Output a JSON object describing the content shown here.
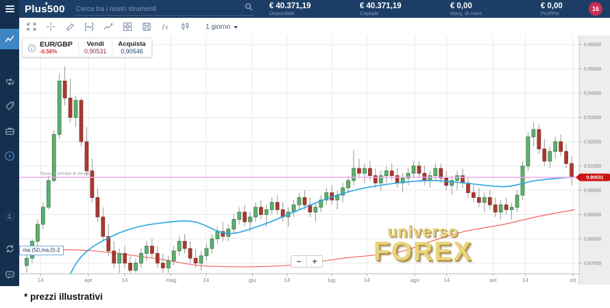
{
  "topbar": {
    "logo": "Plus500",
    "logo_plus": "+",
    "search_placeholder": "Cerca tra i nostri strumenti",
    "metrics": [
      {
        "value": "€ 40.371,19",
        "label": "Disponibile"
      },
      {
        "value": "€ 40.371,19",
        "label": "Capitale"
      },
      {
        "value": "€ 0,00",
        "label": "Marg. di mant."
      },
      {
        "value": "€ 0,00",
        "label": "Prof/Per"
      }
    ],
    "badge_count": "16"
  },
  "sidebar": {
    "icons": [
      "trade-chart",
      "positions",
      "instruments-tag",
      "portfolio",
      "boost",
      "sentiment",
      "refresh",
      "support-chat"
    ],
    "selected": "trade-chart"
  },
  "toolbar": {
    "icons": [
      "fit-screen",
      "crosshair",
      "draw",
      "indicators",
      "chart-type-line",
      "layouts",
      "save",
      "functions",
      "candlestick"
    ],
    "timeframe": "1 giorno"
  },
  "instrument": {
    "name": "EUR/GBP",
    "change": "-0.56%",
    "sell_label": "Vendi",
    "sell_value": "0,90531",
    "buy_label": "Acquista",
    "buy_value": "0,90546"
  },
  "zoom_controls": {
    "out": "−",
    "in": "+"
  },
  "watermark": {
    "line1": "universo",
    "line2": "FOREX"
  },
  "footer_note": "* prezzi illustrativi",
  "chart_data": {
    "type": "candlestick",
    "title": "EUR/GBP 1 giorno",
    "ylim": [
      0.8656,
      0.9637
    ],
    "y_ticks": [
      0.96,
      0.95,
      0.94,
      0.93,
      0.92,
      0.91,
      0.9,
      0.89,
      0.88,
      0.87
    ],
    "y_tick_labels": [
      "0.96000",
      "0.95000",
      "0.94000",
      "0.93000",
      "0.92000",
      "0.91000",
      "0.90000",
      "0.89000",
      "0.88000",
      "0.87000"
    ],
    "x_labels": [
      {
        "label": "14",
        "t": 0.03
      },
      {
        "label": "apr",
        "t": 0.117
      },
      {
        "label": "14",
        "t": 0.183
      },
      {
        "label": "mag",
        "t": 0.267
      },
      {
        "label": "14",
        "t": 0.331
      },
      {
        "label": "giu",
        "t": 0.415
      },
      {
        "label": "14",
        "t": 0.478
      },
      {
        "label": "lug",
        "t": 0.559
      },
      {
        "label": "14",
        "t": 0.623
      },
      {
        "label": "ago",
        "t": 0.71
      },
      {
        "label": "14",
        "t": 0.768
      },
      {
        "label": "set",
        "t": 0.852
      },
      {
        "label": "14",
        "t": 0.911
      },
      {
        "label": "ott",
        "t": 0.9975
      }
    ],
    "sell_line": 0.90531,
    "sell_line_label": "Tasso di entrata di vendita",
    "price_tag": "0.90531",
    "ma_legend": "ma (50,ma,0)-2",
    "colors": {
      "up_fill": "#63ad74",
      "up_stroke": "#2f7d3f",
      "down_fill": "#a63a31",
      "down_stroke": "#8c2f27",
      "wick": "#8a8a8a",
      "ma_fast": "#2fa9e0",
      "ma_slow": "#f0615c",
      "level": "#eda9ea",
      "tag_bg": "#cc1414",
      "grid": "#e9e9e9",
      "axis_bg": "#ededed",
      "axis_text": "#7d7d7d"
    },
    "candles": [
      [
        0.869,
        0.874,
        0.866,
        0.872
      ],
      [
        0.872,
        0.88,
        0.87,
        0.879
      ],
      [
        0.879,
        0.888,
        0.877,
        0.886
      ],
      [
        0.886,
        0.895,
        0.884,
        0.893
      ],
      [
        0.893,
        0.906,
        0.892,
        0.904
      ],
      [
        0.904,
        0.925,
        0.903,
        0.923
      ],
      [
        0.923,
        0.948,
        0.921,
        0.945
      ],
      [
        0.945,
        0.951,
        0.935,
        0.938
      ],
      [
        0.938,
        0.946,
        0.928,
        0.93
      ],
      [
        0.93,
        0.939,
        0.926,
        0.937
      ],
      [
        0.937,
        0.938,
        0.918,
        0.92
      ],
      [
        0.92,
        0.926,
        0.906,
        0.908
      ],
      [
        0.908,
        0.913,
        0.895,
        0.897
      ],
      [
        0.897,
        0.901,
        0.887,
        0.889
      ],
      [
        0.889,
        0.893,
        0.879,
        0.881
      ],
      [
        0.881,
        0.886,
        0.873,
        0.875
      ],
      [
        0.875,
        0.879,
        0.868,
        0.87
      ],
      [
        0.87,
        0.876,
        0.866,
        0.874
      ],
      [
        0.874,
        0.877,
        0.868,
        0.87
      ],
      [
        0.87,
        0.873,
        0.866,
        0.867
      ],
      [
        0.867,
        0.872,
        0.866,
        0.87
      ],
      [
        0.87,
        0.876,
        0.868,
        0.874
      ],
      [
        0.874,
        0.879,
        0.871,
        0.877
      ],
      [
        0.877,
        0.88,
        0.872,
        0.874
      ],
      [
        0.874,
        0.877,
        0.868,
        0.87
      ],
      [
        0.87,
        0.874,
        0.866,
        0.868
      ],
      [
        0.868,
        0.873,
        0.866,
        0.871
      ],
      [
        0.871,
        0.877,
        0.869,
        0.875
      ],
      [
        0.875,
        0.881,
        0.873,
        0.879
      ],
      [
        0.879,
        0.882,
        0.874,
        0.876
      ],
      [
        0.876,
        0.879,
        0.87,
        0.872
      ],
      [
        0.872,
        0.876,
        0.868,
        0.87
      ],
      [
        0.87,
        0.875,
        0.867,
        0.873
      ],
      [
        0.873,
        0.878,
        0.871,
        0.876
      ],
      [
        0.876,
        0.882,
        0.874,
        0.88
      ],
      [
        0.88,
        0.885,
        0.878,
        0.883
      ],
      [
        0.883,
        0.887,
        0.879,
        0.881
      ],
      [
        0.881,
        0.886,
        0.879,
        0.884
      ],
      [
        0.884,
        0.89,
        0.882,
        0.888
      ],
      [
        0.888,
        0.893,
        0.886,
        0.891
      ],
      [
        0.891,
        0.894,
        0.885,
        0.887
      ],
      [
        0.887,
        0.891,
        0.883,
        0.889
      ],
      [
        0.889,
        0.895,
        0.887,
        0.893
      ],
      [
        0.893,
        0.896,
        0.888,
        0.89
      ],
      [
        0.89,
        0.894,
        0.885,
        0.892
      ],
      [
        0.892,
        0.897,
        0.89,
        0.895
      ],
      [
        0.895,
        0.898,
        0.89,
        0.892
      ],
      [
        0.892,
        0.895,
        0.887,
        0.889
      ],
      [
        0.889,
        0.893,
        0.885,
        0.891
      ],
      [
        0.891,
        0.896,
        0.889,
        0.894
      ],
      [
        0.894,
        0.899,
        0.892,
        0.897
      ],
      [
        0.897,
        0.9,
        0.892,
        0.894
      ],
      [
        0.894,
        0.897,
        0.889,
        0.891
      ],
      [
        0.891,
        0.895,
        0.887,
        0.893
      ],
      [
        0.893,
        0.898,
        0.891,
        0.896
      ],
      [
        0.896,
        0.901,
        0.894,
        0.899
      ],
      [
        0.899,
        0.902,
        0.894,
        0.896
      ],
      [
        0.896,
        0.9,
        0.892,
        0.898
      ],
      [
        0.898,
        0.903,
        0.895,
        0.901
      ],
      [
        0.901,
        0.906,
        0.899,
        0.904
      ],
      [
        0.904,
        0.9165,
        0.902,
        0.909
      ],
      [
        0.909,
        0.913,
        0.905,
        0.907
      ],
      [
        0.907,
        0.911,
        0.903,
        0.909
      ],
      [
        0.909,
        0.912,
        0.904,
        0.906
      ],
      [
        0.906,
        0.909,
        0.901,
        0.903
      ],
      [
        0.903,
        0.908,
        0.9,
        0.906
      ],
      [
        0.906,
        0.91,
        0.903,
        0.908
      ],
      [
        0.908,
        0.911,
        0.904,
        0.906
      ],
      [
        0.906,
        0.909,
        0.901,
        0.903
      ],
      [
        0.903,
        0.907,
        0.899,
        0.905
      ],
      [
        0.905,
        0.909,
        0.902,
        0.907
      ],
      [
        0.907,
        0.912,
        0.905,
        0.91
      ],
      [
        0.91,
        0.912,
        0.905,
        0.907
      ],
      [
        0.907,
        0.91,
        0.902,
        0.904
      ],
      [
        0.904,
        0.908,
        0.901,
        0.906
      ],
      [
        0.906,
        0.911,
        0.904,
        0.909
      ],
      [
        0.909,
        0.911,
        0.903,
        0.905
      ],
      [
        0.905,
        0.908,
        0.9,
        0.902
      ],
      [
        0.902,
        0.906,
        0.898,
        0.904
      ],
      [
        0.904,
        0.908,
        0.9,
        0.906
      ],
      [
        0.906,
        0.909,
        0.901,
        0.903
      ],
      [
        0.903,
        0.905,
        0.897,
        0.899
      ],
      [
        0.899,
        0.902,
        0.895,
        0.897
      ],
      [
        0.897,
        0.901,
        0.893,
        0.895
      ],
      [
        0.895,
        0.899,
        0.891,
        0.897
      ],
      [
        0.897,
        0.9,
        0.892,
        0.894
      ],
      [
        0.894,
        0.897,
        0.889,
        0.891
      ],
      [
        0.891,
        0.896,
        0.888,
        0.894
      ],
      [
        0.894,
        0.897,
        0.89,
        0.892
      ],
      [
        0.892,
        0.895,
        0.888,
        0.893
      ],
      [
        0.893,
        0.9,
        0.891,
        0.898
      ],
      [
        0.898,
        0.912,
        0.896,
        0.91
      ],
      [
        0.91,
        0.924,
        0.908,
        0.922
      ],
      [
        0.922,
        0.928,
        0.918,
        0.925
      ],
      [
        0.925,
        0.927,
        0.915,
        0.917
      ],
      [
        0.917,
        0.921,
        0.91,
        0.912
      ],
      [
        0.912,
        0.918,
        0.909,
        0.916
      ],
      [
        0.916,
        0.922,
        0.913,
        0.92
      ],
      [
        0.92,
        0.923,
        0.914,
        0.916
      ],
      [
        0.916,
        0.919,
        0.909,
        0.911
      ],
      [
        0.911,
        0.914,
        0.902,
        0.9053
      ]
    ],
    "ma_blue": [
      [
        0.062,
        0.854
      ],
      [
        0.085,
        0.866
      ],
      [
        0.11,
        0.874
      ],
      [
        0.15,
        0.88
      ],
      [
        0.2,
        0.8845
      ],
      [
        0.26,
        0.8868
      ],
      [
        0.31,
        0.887
      ],
      [
        0.37,
        0.8822
      ],
      [
        0.43,
        0.8855
      ],
      [
        0.49,
        0.891
      ],
      [
        0.55,
        0.8965
      ],
      [
        0.61,
        0.9005
      ],
      [
        0.679,
        0.903
      ],
      [
        0.74,
        0.904
      ],
      [
        0.8,
        0.903
      ],
      [
        0.873,
        0.9015
      ],
      [
        0.93,
        0.904
      ],
      [
        1.0,
        0.9055
      ]
    ],
    "ma_red": [
      [
        0.0,
        0.8745
      ],
      [
        0.08,
        0.8755
      ],
      [
        0.15,
        0.8745
      ],
      [
        0.25,
        0.8715
      ],
      [
        0.32,
        0.869
      ],
      [
        0.42,
        0.8685
      ],
      [
        0.5,
        0.8695
      ],
      [
        0.58,
        0.872
      ],
      [
        0.679,
        0.8745
      ],
      [
        0.74,
        0.879
      ],
      [
        0.8,
        0.883
      ],
      [
        0.873,
        0.886
      ],
      [
        0.93,
        0.889
      ],
      [
        1.0,
        0.892
      ]
    ]
  }
}
